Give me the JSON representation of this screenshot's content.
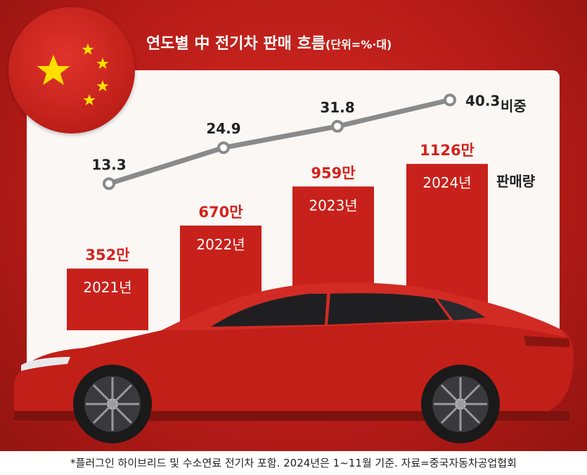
{
  "title": "연도별 中 전기차 판매 흐름",
  "unit": "(단위=%·대)",
  "footnote": "*플러그인 하이브리드 및 수소연료 전기차 포함. 2024년은 1~11월 기준. 자료=중국자동차공업협회",
  "chart_data": {
    "type": "bar",
    "categories": [
      "2021년",
      "2022년",
      "2023년",
      "2024년"
    ],
    "series": [
      {
        "name": "판매량",
        "values": [
          352,
          670,
          959,
          1126
        ],
        "value_labels": [
          "352만",
          "670만",
          "959만",
          "1126만"
        ]
      },
      {
        "name": "비중",
        "type": "line",
        "values": [
          13.3,
          24.9,
          31.8,
          40.3
        ],
        "value_labels": [
          "13.3",
          "24.9",
          "31.8",
          "40.3"
        ]
      }
    ]
  },
  "colors": {
    "bar": "#c8211b",
    "bar_label": "#d2231c",
    "line": "#8a8a8a",
    "background": "#b81c18"
  }
}
